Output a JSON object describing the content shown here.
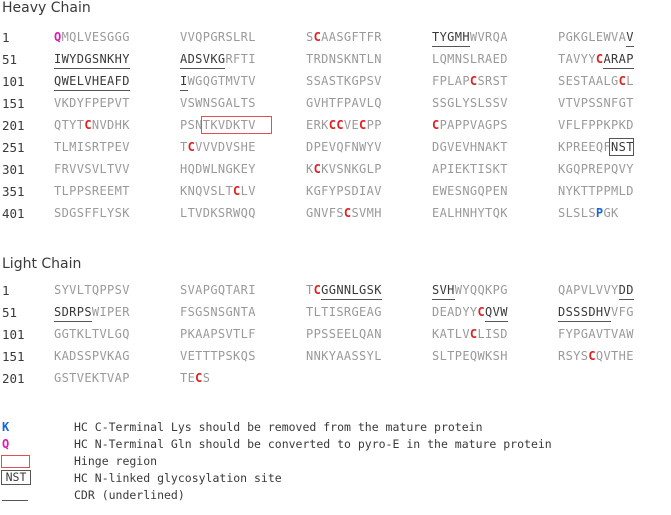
{
  "heavy_chain": {
    "title": "Heavy Chain",
    "rows": [
      {
        "num": "1",
        "blocks": [
          "QMQLVESGGG",
          "VVQPGRSLRL",
          "SCAASGFTFR",
          "TYGMHWVRQA",
          "PGKGLEWVAV"
        ]
      },
      {
        "num": "51",
        "blocks": [
          "IWYDGSNKHY",
          "ADSVKGRFTI",
          "TRDNSKNTLN",
          "LQMNSLRAED",
          "TAVYYCARAP"
        ]
      },
      {
        "num": "101",
        "blocks": [
          "QWELVHEAFD",
          "IWGQGTMVTV",
          "SSASTKGPSV",
          "FPLAPCSRST",
          "SESTAALGCL"
        ]
      },
      {
        "num": "151",
        "blocks": [
          "VKDYFPEPVT",
          "VSWNSGALTS",
          "GVHTFPAVLQ",
          "SSGLYSLSSV",
          "VTVPSSNFGT"
        ]
      },
      {
        "num": "201",
        "blocks": [
          "QTYTCNVDHK",
          "PSNTKVDKTV",
          "ERKCCVECPP",
          "CPAPPVAGPS",
          "VFLFPPKPKD"
        ]
      },
      {
        "num": "251",
        "blocks": [
          "TLMISRTPEV",
          "TCVVVDVSHE",
          "DPEVQFNWYV",
          "DGVEVHNAKT",
          "KPREEQFNST"
        ]
      },
      {
        "num": "301",
        "blocks": [
          "FRVVSVLTVV",
          "HQDWLNGKEY",
          "KCKVSNKGLP",
          "APIEKTISKT",
          "KGQPREPQVY"
        ]
      },
      {
        "num": "351",
        "blocks": [
          "TLPPSREEMT",
          "KNQVSLTCLV",
          "KGFYPSDIAV",
          "EWESNGQPEN",
          "NYKTTPPMLD"
        ]
      },
      {
        "num": "401",
        "blocks": [
          "SDGSFFLYSK",
          "LTVDKSRWQQ",
          "GNVFSCSVMH",
          "EALHNHYTQK",
          "SLSLSPGK"
        ]
      }
    ]
  },
  "light_chain": {
    "title": "Light Chain",
    "rows": [
      {
        "num": "1",
        "blocks": [
          "SYVLTQPPSV",
          "SVAPGQTARI",
          "TCGGNNLGSK",
          "SVHWYQQKPG",
          "QAPVLVVYDD"
        ]
      },
      {
        "num": "51",
        "blocks": [
          "SDRPSWIPER",
          "FSGSNSGNTA",
          "TLTISRGEAG",
          "DEADYYCQVW",
          "DSSSDHVVFG"
        ]
      },
      {
        "num": "101",
        "blocks": [
          "GGTKLTVLGQ",
          "PKAAPSVTLF",
          "PPSSEELQAN",
          "KATLVCLISD",
          "FYPGAVTVAW"
        ]
      },
      {
        "num": "151",
        "blocks": [
          "KADSSPVKAG",
          "VETTTPSKQS",
          "NNKYAASSYL",
          "SLTPEQWKSH",
          "RSYSCQVTHE"
        ]
      },
      {
        "num": "201",
        "blocks": [
          "GSTVEKTVAP",
          "TECS"
        ]
      }
    ]
  },
  "legend": [
    {
      "key": "K",
      "text": "HC C-Terminal Lys should be removed from the mature protein"
    },
    {
      "key": "Q",
      "text": "HC N-Terminal Gln should be converted to pyro-E in the mature protein"
    },
    {
      "key": "",
      "text": "Hinge region"
    },
    {
      "key": "NST",
      "text": "HC N-linked glycosylation site"
    },
    {
      "key": "",
      "text": "CDR (underlined)"
    }
  ],
  "colors": {
    "cysteine": "#e02020",
    "c_terminal_lys": "#1565d8",
    "n_terminal_gln": "#d81bb4",
    "hinge_box": "#e05050",
    "residue": "#9a9a9a",
    "text": "#3a3a3a"
  }
}
